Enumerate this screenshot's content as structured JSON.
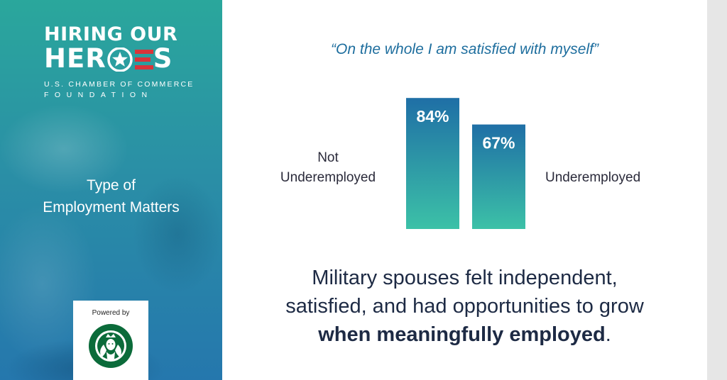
{
  "brand": {
    "line1": "HIRING OUR",
    "line2_a": "HER",
    "line2_b": "S",
    "sub1": "U.S. CHAMBER OF COMMERCE",
    "sub2": "FOUNDATION",
    "star_color": "#ffffff",
    "stripe_color": "#d9343a"
  },
  "panel": {
    "heading_line1": "Type of",
    "heading_line2": "Employment Matters",
    "powered_by": "Powered by",
    "sponsor_icon": "starbucks-siren-icon"
  },
  "quote": "“On the whole I am satisfied with myself”",
  "chart_data": {
    "type": "bar",
    "categories": [
      "Not Underemployed",
      "Underemployed"
    ],
    "category_lines": [
      [
        "Not",
        "Underemployed"
      ],
      [
        "Underemployed"
      ]
    ],
    "values": [
      84,
      67
    ],
    "value_labels": [
      "84%",
      "67%"
    ],
    "ylim": [
      0,
      100
    ],
    "grid": false,
    "title": "",
    "xlabel": "",
    "ylabel": "",
    "bar_gradient": [
      "#1f6fa6",
      "#3cc1a7"
    ]
  },
  "message": {
    "line1": "Military spouses felt independent,",
    "line2": "satisfied, and had opportunities to grow",
    "line3_bold": "when meaningfully employed",
    "line3_end": "."
  },
  "colors": {
    "panel_top": "#2aa79c",
    "panel_bottom": "#2577ad",
    "quote": "#1e6e9e",
    "message": "#1d2a44",
    "strip": "#e6e6e6"
  }
}
